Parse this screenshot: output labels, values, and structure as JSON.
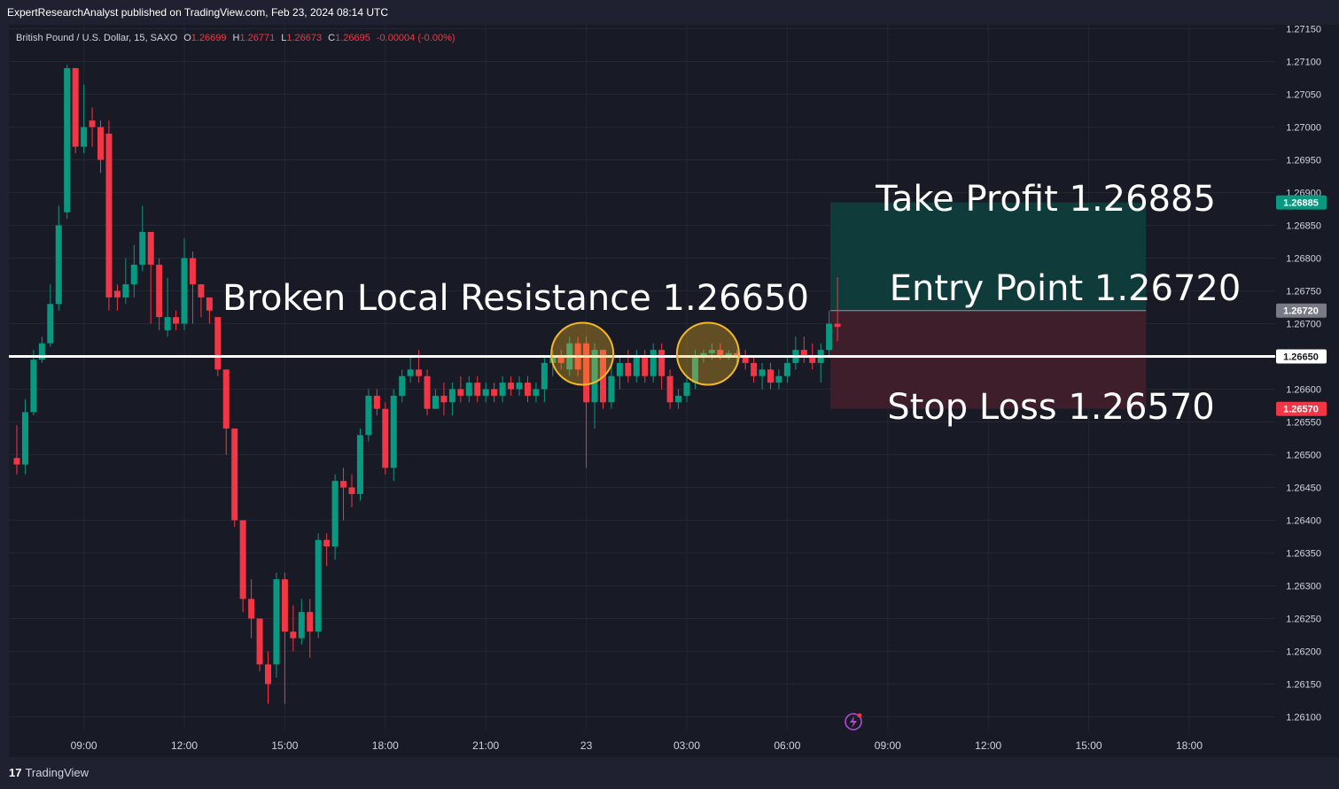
{
  "publish_line": "ExpertResearchAnalyst published on TradingView.com, Feb 23, 2024 08:14 UTC",
  "footer": {
    "logo_mark": "17",
    "logo_text": "TradingView"
  },
  "colors": {
    "up": "#089981",
    "down": "#f23645",
    "background": "#181b25",
    "text": "#d1d4dc",
    "resistance_line": "#ffffff",
    "circle": "#f5b724",
    "profit_zone": "#0f3b3a",
    "loss_zone": "#3d1e2a"
  },
  "icons": {
    "replay": "lightning-icon"
  },
  "chart_data": {
    "type": "candlestick",
    "symbol": "British Pound / U.S. Dollar, 15, SAXO",
    "ohlc_legend": {
      "open_label": "O",
      "open": "1.26699",
      "high_label": "H",
      "high": "1.26771",
      "low_label": "L",
      "low": "1.26673",
      "close_label": "C",
      "close": "1.26695",
      "change": "-0.00004 (-0.00%)"
    },
    "ylim": [
      1.26072,
      1.27163
    ],
    "y_ticks": [
      "1.27150",
      "1.27100",
      "1.27050",
      "1.27000",
      "1.26950",
      "1.26900",
      "1.26850",
      "1.26800",
      "1.26750",
      "1.26700",
      "1.26650",
      "1.26600",
      "1.26550",
      "1.26500",
      "1.26450",
      "1.26400",
      "1.26350",
      "1.26300",
      "1.26250",
      "1.26200",
      "1.26150",
      "1.26100"
    ],
    "x_ticks": [
      {
        "label": "09:00",
        "index": 8
      },
      {
        "label": "12:00",
        "index": 20
      },
      {
        "label": "15:00",
        "index": 32
      },
      {
        "label": "18:00",
        "index": 44
      },
      {
        "label": "21:00",
        "index": 56
      },
      {
        "label": "23",
        "index": 68
      },
      {
        "label": "03:00",
        "index": 80
      },
      {
        "label": "06:00",
        "index": 92
      },
      {
        "label": "09:00",
        "index": 104
      },
      {
        "label": "12:00",
        "index": 116
      },
      {
        "label": "15:00",
        "index": 128
      },
      {
        "label": "18:00",
        "index": 140
      }
    ],
    "candles": [
      [
        1.26495,
        1.26485,
        1.26545,
        1.2647
      ],
      [
        1.26485,
        1.26565,
        1.26585,
        1.2647
      ],
      [
        1.26565,
        1.26645,
        1.2666,
        1.2656
      ],
      [
        1.26645,
        1.2667,
        1.2668,
        1.2664
      ],
      [
        1.2667,
        1.2673,
        1.2676,
        1.26665
      ],
      [
        1.2673,
        1.2685,
        1.2688,
        1.2672
      ],
      [
        1.2687,
        1.2709,
        1.27095,
        1.2686
      ],
      [
        1.2709,
        1.2697,
        1.2706,
        1.2696
      ],
      [
        1.2697,
        1.27,
        1.27065,
        1.2696
      ],
      [
        1.2701,
        1.27,
        1.2703,
        1.2697
      ],
      [
        1.27,
        1.2695,
        1.2701,
        1.2693
      ],
      [
        1.2699,
        1.2674,
        1.2701,
        1.2672
      ],
      [
        1.2675,
        1.2674,
        1.2676,
        1.2672
      ],
      [
        1.2674,
        1.2676,
        1.268,
        1.2673
      ],
      [
        1.2676,
        1.2679,
        1.2682,
        1.2674
      ],
      [
        1.2679,
        1.2684,
        1.2688,
        1.2678
      ],
      [
        1.2684,
        1.2679,
        1.2684,
        1.267
      ],
      [
        1.2679,
        1.2671,
        1.268,
        1.2669
      ],
      [
        1.2669,
        1.2671,
        1.2677,
        1.2668
      ],
      [
        1.2671,
        1.267,
        1.2672,
        1.2669
      ],
      [
        1.267,
        1.268,
        1.2683,
        1.2669
      ],
      [
        1.268,
        1.2676,
        1.2681,
        1.267
      ],
      [
        1.2676,
        1.2674,
        1.2676,
        1.2671
      ],
      [
        1.2674,
        1.2672,
        1.2674,
        1.267
      ],
      [
        1.2671,
        1.2663,
        1.2671,
        1.2662
      ],
      [
        1.2663,
        1.2654,
        1.2663,
        1.265
      ],
      [
        1.2654,
        1.264,
        1.2654,
        1.2639
      ],
      [
        1.264,
        1.2628,
        1.264,
        1.2626
      ],
      [
        1.2628,
        1.2625,
        1.2631,
        1.2622
      ],
      [
        1.2625,
        1.2618,
        1.2625,
        1.2617
      ],
      [
        1.2618,
        1.2615,
        1.262,
        1.2612
      ],
      [
        1.2618,
        1.2631,
        1.2632,
        1.2616
      ],
      [
        1.2631,
        1.2623,
        1.2632,
        1.2612
      ],
      [
        1.2623,
        1.2622,
        1.2627,
        1.262
      ],
      [
        1.2622,
        1.2626,
        1.2628,
        1.2621
      ],
      [
        1.2626,
        1.2623,
        1.2628,
        1.2619
      ],
      [
        1.2623,
        1.2637,
        1.2638,
        1.2622
      ],
      [
        1.2637,
        1.2636,
        1.2638,
        1.2633
      ],
      [
        1.2636,
        1.2646,
        1.2647,
        1.2634
      ],
      [
        1.2646,
        1.2645,
        1.2648,
        1.264
      ],
      [
        1.2645,
        1.2644,
        1.2647,
        1.2642
      ],
      [
        1.2644,
        1.2653,
        1.2654,
        1.2643
      ],
      [
        1.2653,
        1.2659,
        1.266,
        1.2652
      ],
      [
        1.2659,
        1.2657,
        1.266,
        1.2656
      ],
      [
        1.2657,
        1.2648,
        1.2658,
        1.2647
      ],
      [
        1.2648,
        1.2659,
        1.266,
        1.2646
      ],
      [
        1.2659,
        1.2662,
        1.2663,
        1.2658
      ],
      [
        1.2662,
        1.2663,
        1.2665,
        1.2661
      ],
      [
        1.2663,
        1.2662,
        1.2666,
        1.2661
      ],
      [
        1.2662,
        1.2657,
        1.2663,
        1.2656
      ],
      [
        1.2657,
        1.2659,
        1.266,
        1.2657
      ],
      [
        1.2659,
        1.2658,
        1.2661,
        1.2656
      ],
      [
        1.2658,
        1.266,
        1.2661,
        1.2656
      ],
      [
        1.266,
        1.2659,
        1.2662,
        1.2658
      ],
      [
        1.2659,
        1.2661,
        1.2662,
        1.2658
      ],
      [
        1.2661,
        1.2659,
        1.2662,
        1.2658
      ],
      [
        1.2659,
        1.266,
        1.2661,
        1.2658
      ],
      [
        1.266,
        1.2659,
        1.2661,
        1.2658
      ],
      [
        1.2659,
        1.2661,
        1.2662,
        1.2658
      ],
      [
        1.2661,
        1.266,
        1.2662,
        1.2659
      ],
      [
        1.266,
        1.2661,
        1.2662,
        1.2659
      ],
      [
        1.2661,
        1.2659,
        1.2662,
        1.2658
      ],
      [
        1.2659,
        1.266,
        1.2661,
        1.2658
      ],
      [
        1.266,
        1.2664,
        1.2665,
        1.2658
      ],
      [
        1.2664,
        1.2665,
        1.2666,
        1.2662
      ],
      [
        1.2665,
        1.2664,
        1.2666,
        1.2663
      ],
      [
        1.2663,
        1.2667,
        1.2668,
        1.2662
      ],
      [
        1.2667,
        1.2663,
        1.2668,
        1.2662
      ],
      [
        1.2667,
        1.2658,
        1.2668,
        1.2648
      ],
      [
        1.2658,
        1.2666,
        1.2667,
        1.2654
      ],
      [
        1.2666,
        1.2658,
        1.2666,
        1.2657
      ],
      [
        1.2658,
        1.2662,
        1.2664,
        1.2657
      ],
      [
        1.2662,
        1.2664,
        1.2665,
        1.266
      ],
      [
        1.2664,
        1.2662,
        1.2666,
        1.2661
      ],
      [
        1.2662,
        1.2665,
        1.2666,
        1.2661
      ],
      [
        1.2665,
        1.2662,
        1.2666,
        1.2661
      ],
      [
        1.2662,
        1.2666,
        1.2667,
        1.2661
      ],
      [
        1.2666,
        1.2662,
        1.2667,
        1.266
      ],
      [
        1.2662,
        1.2658,
        1.2663,
        1.2657
      ],
      [
        1.2658,
        1.2659,
        1.266,
        1.2657
      ],
      [
        1.2659,
        1.2661,
        1.2662,
        1.2658
      ],
      [
        1.2661,
        1.2665,
        1.2666,
        1.266
      ],
      [
        1.2665,
        1.26655,
        1.2666,
        1.2664
      ],
      [
        1.26655,
        1.2666,
        1.2667,
        1.26645
      ],
      [
        1.2666,
        1.2665,
        1.2667,
        1.26645
      ],
      [
        1.2665,
        1.26655,
        1.2666,
        1.26645
      ],
      [
        1.26655,
        1.2665,
        1.2666,
        1.2664
      ],
      [
        1.2665,
        1.2664,
        1.2666,
        1.2663
      ],
      [
        1.2664,
        1.2662,
        1.2665,
        1.2661
      ],
      [
        1.2662,
        1.2663,
        1.2664,
        1.266
      ],
      [
        1.2663,
        1.2661,
        1.2664,
        1.266
      ],
      [
        1.2661,
        1.2662,
        1.2663,
        1.266
      ],
      [
        1.2662,
        1.2664,
        1.2665,
        1.2661
      ],
      [
        1.2664,
        1.2666,
        1.2668,
        1.2663
      ],
      [
        1.2666,
        1.2665,
        1.2668,
        1.2664
      ],
      [
        1.2665,
        1.2664,
        1.2667,
        1.2663
      ],
      [
        1.2664,
        1.2666,
        1.2667,
        1.2661
      ],
      [
        1.2666,
        1.267,
        1.2672,
        1.2665
      ],
      [
        1.267,
        1.26695,
        1.26771,
        1.26673
      ]
    ]
  },
  "annotations": {
    "resistance": {
      "label": "Broken Local Resistance 1.26650",
      "price": 1.2665
    },
    "take_profit": {
      "label": "Take Profit 1.26885",
      "price": 1.26885
    },
    "entry": {
      "label": "Entry Point 1.26720",
      "price": 1.2672
    },
    "stop_loss": {
      "label": "Stop Loss 1.26570",
      "price": 1.2657
    },
    "circles_at_candles": [
      67,
      82
    ],
    "position_start_index": 98,
    "position_end_index": 134,
    "axis_badges": [
      {
        "text": "1.26885",
        "price": 1.26885,
        "kind": "profit"
      },
      {
        "text": "1.26720",
        "price": 1.2672,
        "kind": "entry"
      },
      {
        "text": "1.26650",
        "price": 1.2665,
        "kind": "line"
      },
      {
        "text": "1.26570",
        "price": 1.2657,
        "kind": "loss"
      }
    ]
  }
}
